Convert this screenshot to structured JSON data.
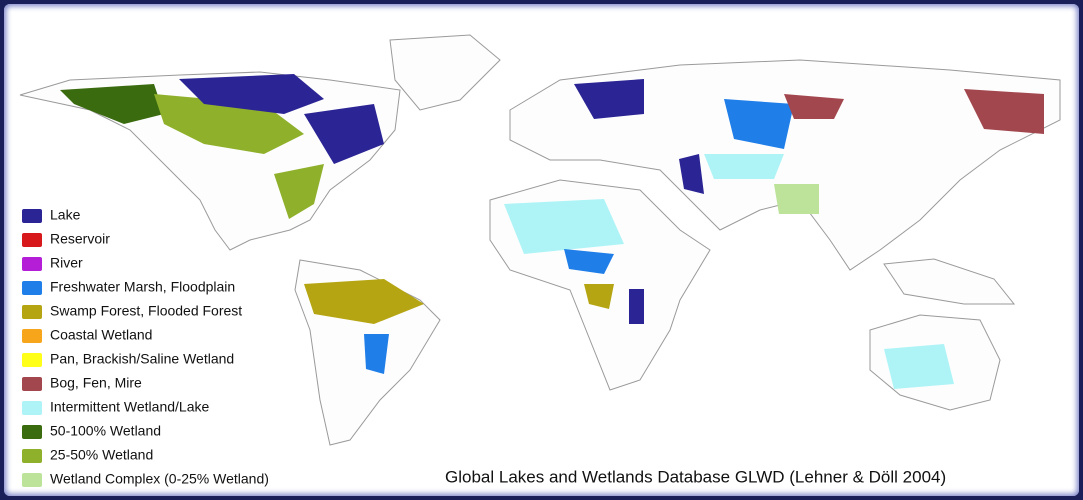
{
  "legend": {
    "items": [
      {
        "label": "Lake",
        "color": "#2b2494"
      },
      {
        "label": "Reservoir",
        "color": "#d7191c"
      },
      {
        "label": "River",
        "color": "#b31ed6"
      },
      {
        "label": "Freshwater Marsh, Floodplain",
        "color": "#1f7ee8"
      },
      {
        "label": "Swamp Forest, Flooded Forest",
        "color": "#b5a512"
      },
      {
        "label": "Coastal Wetland",
        "color": "#f7a51b"
      },
      {
        "label": "Pan, Brackish/Saline Wetland",
        "color": "#ffff1a"
      },
      {
        "label": "Bog, Fen, Mire",
        "color": "#a3474f"
      },
      {
        "label": "Intermittent Wetland/Lake",
        "color": "#aef4f7"
      },
      {
        "label": "50-100% Wetland",
        "color": "#3a6b0f"
      },
      {
        "label": "25-50% Wetland",
        "color": "#8fb02b"
      },
      {
        "label": "Wetland Complex (0-25% Wetland)",
        "color": "#bde39a"
      }
    ]
  },
  "caption": "Global Lakes and Wetlands Database GLWD (Lehner & Döll 2004)"
}
